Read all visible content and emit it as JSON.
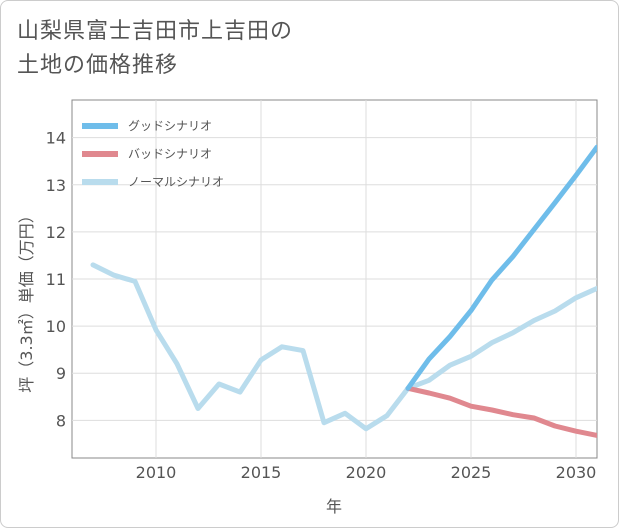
{
  "title_line1": "山梨県富士吉田市上吉田の",
  "title_line2": "土地の価格推移",
  "chart_data": {
    "type": "line",
    "title": "山梨県富士吉田市上吉田の土地の価格推移",
    "xlabel": "年",
    "ylabel": "坪（3.3㎡）単価（万円）",
    "xlim": [
      2006,
      2031
    ],
    "ylim": [
      7.2,
      14.8
    ],
    "xticks": [
      2010,
      2015,
      2020,
      2025,
      2030
    ],
    "yticks": [
      8,
      9,
      10,
      11,
      12,
      13,
      14
    ],
    "grid": true,
    "legend_position": "top-left",
    "series": [
      {
        "name": "グッドシナリオ",
        "color": "#6fbdea",
        "x": [
          2022,
          2023,
          2024,
          2025,
          2026,
          2027,
          2028,
          2029,
          2030,
          2031
        ],
        "y": [
          8.68,
          9.3,
          9.78,
          10.33,
          10.98,
          11.48,
          12.05,
          12.62,
          13.2,
          13.8
        ]
      },
      {
        "name": "バッドシナリオ",
        "color": "#e0888f",
        "x": [
          2022,
          2023,
          2024,
          2025,
          2026,
          2027,
          2028,
          2029,
          2030,
          2031
        ],
        "y": [
          8.68,
          8.58,
          8.47,
          8.3,
          8.22,
          8.12,
          8.05,
          7.88,
          7.77,
          7.68
        ]
      },
      {
        "name": "ノーマルシナリオ",
        "color": "#b9dced",
        "x": [
          2007,
          2008,
          2009,
          2010,
          2011,
          2012,
          2013,
          2014,
          2015,
          2016,
          2017,
          2018,
          2019,
          2020,
          2021,
          2022,
          2023,
          2024,
          2025,
          2026,
          2027,
          2028,
          2029,
          2030,
          2031
        ],
        "y": [
          11.3,
          11.08,
          10.95,
          9.92,
          9.2,
          8.25,
          8.77,
          8.6,
          9.28,
          9.56,
          9.48,
          7.95,
          8.15,
          7.82,
          8.1,
          8.68,
          8.85,
          9.17,
          9.36,
          9.65,
          9.86,
          10.12,
          10.32,
          10.6,
          10.8
        ]
      }
    ]
  }
}
